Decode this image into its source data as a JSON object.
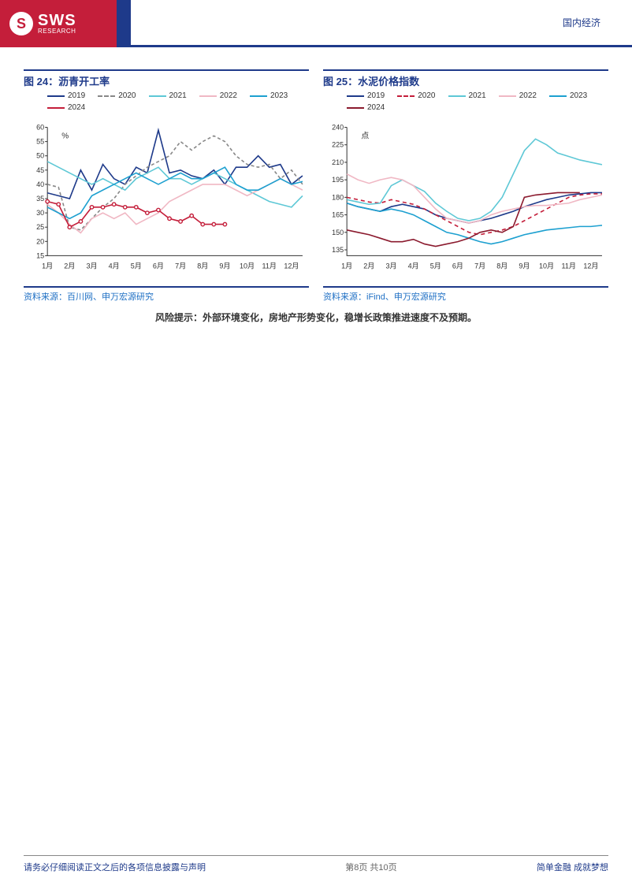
{
  "header": {
    "logo_main": "SWS",
    "logo_sub": "RESEARCH",
    "right_label": "国内经济"
  },
  "chart_left": {
    "title": "图 24：沥青开工率",
    "source": "资料来源：百川网、申万宏源研究",
    "type": "line",
    "x_categories": [
      "1月",
      "2月",
      "3月",
      "4月",
      "5月",
      "6月",
      "7月",
      "8月",
      "9月",
      "10月",
      "11月",
      "12月"
    ],
    "ylim": [
      15,
      60
    ],
    "yticks": [
      15,
      20,
      25,
      30,
      35,
      40,
      45,
      50,
      55,
      60
    ],
    "unit_label": "%",
    "background_color": "#ffffff",
    "axis_color": "#333333",
    "label_fontsize": 10,
    "series": [
      {
        "name": "2019",
        "color": "#1e3a8a",
        "dash": "none",
        "marker": false,
        "values": [
          37,
          36,
          35,
          45,
          38,
          47,
          42,
          40,
          46,
          44,
          59,
          44,
          45,
          43,
          42,
          45,
          40,
          46,
          46,
          50,
          46,
          47,
          40,
          43
        ]
      },
      {
        "name": "2020",
        "color": "#888888",
        "dash": "4,3",
        "marker": false,
        "values": [
          40,
          39,
          25,
          24,
          28,
          32,
          35,
          40,
          43,
          46,
          48,
          50,
          55,
          52,
          55,
          57,
          55,
          50,
          47,
          46,
          47,
          42,
          45,
          40
        ]
      },
      {
        "name": "2021",
        "color": "#5ec8d6",
        "dash": "none",
        "marker": false,
        "values": [
          48,
          46,
          44,
          42,
          40,
          42,
          40,
          38,
          42,
          44,
          46,
          42,
          42,
          40,
          42,
          44,
          42,
          40,
          38,
          36,
          34,
          33,
          32,
          36
        ]
      },
      {
        "name": "2022",
        "color": "#f0b8c4",
        "dash": "none",
        "marker": false,
        "values": [
          33,
          30,
          26,
          23,
          28,
          30,
          28,
          30,
          26,
          28,
          30,
          34,
          36,
          38,
          40,
          40,
          40,
          38,
          36,
          38,
          40,
          42,
          40,
          38
        ]
      },
      {
        "name": "2023",
        "color": "#1da0d0",
        "dash": "none",
        "marker": false,
        "values": [
          32,
          30,
          28,
          30,
          36,
          38,
          40,
          42,
          44,
          42,
          40,
          42,
          44,
          42,
          42,
          44,
          46,
          40,
          38,
          38,
          40,
          42,
          40,
          41
        ]
      },
      {
        "name": "2024",
        "color": "#c41e3a",
        "dash": "none",
        "marker": true,
        "values": [
          34,
          33,
          25,
          27,
          32,
          32,
          33,
          32,
          32,
          30,
          31,
          28,
          27,
          29,
          26,
          26,
          26
        ]
      }
    ]
  },
  "chart_right": {
    "title": "图 25：水泥价格指数",
    "source": "资料来源：iFind、申万宏源研究",
    "type": "line",
    "x_categories": [
      "1月",
      "2月",
      "3月",
      "4月",
      "5月",
      "6月",
      "7月",
      "8月",
      "9月",
      "10月",
      "11月",
      "12月"
    ],
    "ylim": [
      130,
      240
    ],
    "yticks": [
      135,
      150,
      165,
      180,
      195,
      210,
      225,
      240
    ],
    "unit_label": "点",
    "background_color": "#ffffff",
    "axis_color": "#333333",
    "label_fontsize": 10,
    "series": [
      {
        "name": "2019",
        "color": "#1e3a8a",
        "dash": "none",
        "marker": false,
        "values": [
          175,
          172,
          170,
          168,
          172,
          174,
          172,
          170,
          165,
          162,
          160,
          158,
          160,
          162,
          165,
          168,
          172,
          175,
          178,
          180,
          182,
          183,
          184,
          184
        ]
      },
      {
        "name": "2020",
        "color": "#c41e3a",
        "dash": "5,4",
        "marker": false,
        "values": [
          180,
          178,
          176,
          175,
          178,
          176,
          174,
          170,
          165,
          160,
          155,
          150,
          148,
          150,
          152,
          155,
          160,
          165,
          170,
          175,
          180,
          182,
          183,
          183
        ]
      },
      {
        "name": "2021",
        "color": "#5ec8d6",
        "dash": "none",
        "marker": false,
        "values": [
          178,
          176,
          174,
          175,
          190,
          195,
          190,
          185,
          175,
          168,
          162,
          160,
          162,
          168,
          180,
          200,
          220,
          230,
          225,
          218,
          215,
          212,
          210,
          208
        ]
      },
      {
        "name": "2022",
        "color": "#f0b8c4",
        "dash": "none",
        "marker": false,
        "values": [
          200,
          195,
          192,
          195,
          197,
          195,
          190,
          180,
          170,
          162,
          160,
          158,
          160,
          165,
          168,
          170,
          172,
          173,
          173,
          174,
          175,
          178,
          180,
          182
        ]
      },
      {
        "name": "2023",
        "color": "#1da0d0",
        "dash": "none",
        "marker": false,
        "values": [
          175,
          172,
          170,
          168,
          170,
          168,
          165,
          160,
          155,
          150,
          148,
          145,
          142,
          140,
          142,
          145,
          148,
          150,
          152,
          153,
          154,
          155,
          155,
          156
        ]
      },
      {
        "name": "2024",
        "color": "#8b1a2e",
        "dash": "none",
        "marker": false,
        "values": [
          152,
          150,
          148,
          145,
          142,
          142,
          144,
          140,
          138,
          140,
          142,
          145,
          150,
          152,
          150,
          155,
          180,
          182,
          183,
          184,
          184,
          184
        ]
      }
    ]
  },
  "risk_note": "风险提示：外部环境变化，房地产形势变化，稳增长政策推进速度不及预期。",
  "footer": {
    "left": "请务必仔细阅读正文之后的各项信息披露与声明",
    "center": "第8页 共10页",
    "right": "简单金融 成就梦想"
  }
}
